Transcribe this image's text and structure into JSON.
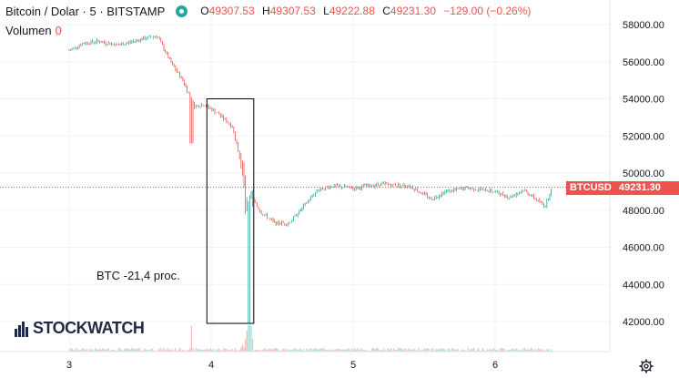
{
  "header": {
    "title": "Bitcoin / Dolar · 5 · BITSTAMP",
    "ohlc": [
      {
        "label": "O",
        "value": "49307.53"
      },
      {
        "label": "H",
        "value": "49307.53"
      },
      {
        "label": "L",
        "value": "49222.88"
      },
      {
        "label": "C",
        "value": "49231.30"
      }
    ],
    "change": "−129.00 (−0.26%)",
    "status_color": "#26a69a"
  },
  "volume": {
    "label": "Volumen",
    "value": "0"
  },
  "annotation": "BTC -21,4 proc.",
  "logo": {
    "text": "STOCKWATCH"
  },
  "price_badge": {
    "symbol": "BTCUSD",
    "price": "49231.30",
    "color": "#ef5350"
  },
  "icons": {
    "settings": "gear-icon"
  },
  "colors": {
    "up": "#26a69a",
    "down": "#ef5350",
    "volume": "#f5b8b6"
  },
  "chart_data": {
    "type": "candlestick",
    "title": "Bitcoin / Dolar · 5 · BITSTAMP",
    "y_ticks": [
      "58000.00",
      "56000.00",
      "54000.00",
      "52000.00",
      "50000.00",
      "48000.00",
      "46000.00",
      "44000.00",
      "42000.00"
    ],
    "x_ticks": [
      "3",
      "4",
      "5",
      "6"
    ],
    "ylim": [
      40800,
      59200
    ],
    "last_price": 49231.3,
    "price_path": [
      {
        "x": 3.0,
        "y": 56600
      },
      {
        "x": 3.1,
        "y": 57000
      },
      {
        "x": 3.2,
        "y": 57100
      },
      {
        "x": 3.35,
        "y": 56900
      },
      {
        "x": 3.5,
        "y": 57200
      },
      {
        "x": 3.62,
        "y": 57400
      },
      {
        "x": 3.72,
        "y": 55900
      },
      {
        "x": 3.8,
        "y": 55000
      },
      {
        "x": 3.88,
        "y": 53600
      },
      {
        "x": 3.95,
        "y": 53700
      },
      {
        "x": 4.05,
        "y": 53200
      },
      {
        "x": 4.15,
        "y": 52500
      },
      {
        "x": 4.22,
        "y": 50200
      },
      {
        "x": 4.25,
        "y": 47600
      },
      {
        "x": 4.28,
        "y": 48700
      },
      {
        "x": 4.35,
        "y": 47900
      },
      {
        "x": 4.45,
        "y": 47300
      },
      {
        "x": 4.55,
        "y": 47300
      },
      {
        "x": 4.65,
        "y": 48200
      },
      {
        "x": 4.75,
        "y": 49100
      },
      {
        "x": 4.85,
        "y": 49300
      },
      {
        "x": 5.0,
        "y": 49200
      },
      {
        "x": 5.2,
        "y": 49400
      },
      {
        "x": 5.4,
        "y": 49300
      },
      {
        "x": 5.55,
        "y": 48600
      },
      {
        "x": 5.65,
        "y": 49000
      },
      {
        "x": 5.8,
        "y": 49200
      },
      {
        "x": 6.0,
        "y": 49000
      },
      {
        "x": 6.1,
        "y": 48700
      },
      {
        "x": 6.2,
        "y": 49100
      },
      {
        "x": 6.35,
        "y": 48200
      },
      {
        "x": 6.4,
        "y": 49231
      }
    ],
    "highlight_range": {
      "x": [
        3.97,
        4.3
      ],
      "y": [
        41900,
        54000
      ]
    }
  }
}
